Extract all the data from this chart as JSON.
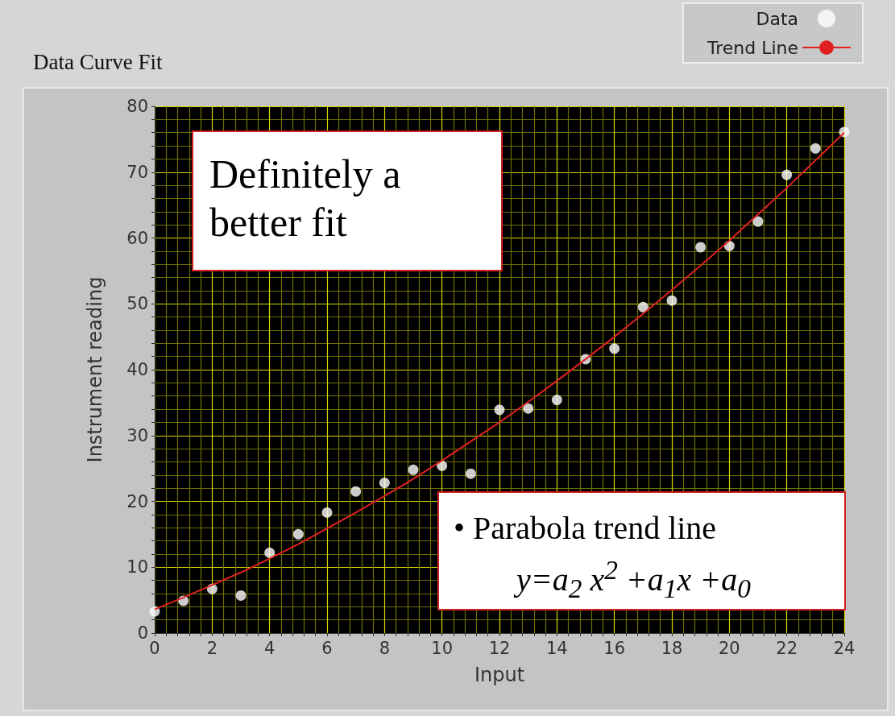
{
  "chart_data": {
    "type": "scatter",
    "title": "Data Curve Fit",
    "xlabel": "Input",
    "ylabel": "Instrument reading",
    "x": [
      0,
      1,
      2,
      3,
      4,
      5,
      6,
      7,
      8,
      9,
      10,
      11,
      12,
      13,
      14,
      15,
      16,
      17,
      18,
      19,
      20,
      21,
      22,
      23,
      24
    ],
    "series": [
      {
        "name": "Data",
        "marker": "circle",
        "color": "#ffffff",
        "values": [
          3.3,
          4.9,
          6.7,
          5.7,
          12.2,
          15.0,
          18.3,
          21.5,
          22.8,
          24.8,
          25.4,
          24.2,
          33.9,
          34.1,
          35.4,
          41.6,
          43.2,
          49.5,
          50.5,
          58.6,
          58.8,
          62.5,
          69.6,
          73.6,
          76.1
        ]
      },
      {
        "name": "Trend Line",
        "type": "line",
        "marker": "none",
        "line_style": "solid",
        "color": "#e02020",
        "values": [
          3.6,
          5.4,
          7.3,
          9.2,
          11.3,
          13.5,
          15.9,
          18.3,
          20.8,
          23.4,
          26.2,
          29.1,
          32.0,
          35.1,
          38.3,
          41.6,
          45.0,
          48.5,
          52.1,
          55.8,
          59.6,
          63.6,
          67.6,
          71.8,
          76.0
        ]
      }
    ],
    "xlim": [
      0,
      24
    ],
    "xticks": [
      0,
      {
        "value": 0.4,
        "label": null
      },
      {
        "value": 0.8,
        "label": null
      },
      {
        "value": 1.2,
        "label": null
      },
      {
        "value": 1.6,
        "label": null
      },
      2,
      {
        "value": 2.4,
        "label": null
      },
      {
        "value": 2.8,
        "label": null
      },
      {
        "value": 3.2,
        "label": null
      },
      {
        "value": 3.6,
        "label": null
      },
      4,
      {
        "value": 4.4,
        "label": null
      },
      {
        "value": 4.8,
        "label": null
      },
      {
        "value": 5.2,
        "label": null
      },
      {
        "value": 5.6,
        "label": null
      },
      6,
      {
        "value": 6.4,
        "label": null
      },
      {
        "value": 6.8,
        "label": null
      },
      {
        "value": 7.2,
        "label": null
      },
      {
        "value": 7.6,
        "label": null
      },
      8,
      {
        "value": 8.4,
        "label": null
      },
      {
        "value": 8.8,
        "label": null
      },
      {
        "value": 9.2,
        "label": null
      },
      {
        "value": 9.6,
        "label": null
      },
      10,
      {
        "value": 10.4,
        "label": null
      },
      {
        "value": 10.8,
        "label": null
      },
      {
        "value": 11.2,
        "label": null
      },
      {
        "value": 11.6,
        "label": null
      },
      12,
      {
        "value": 12.4,
        "label": null
      },
      {
        "value": 12.8,
        "label": null
      },
      {
        "value": 13.2,
        "label": null
      },
      {
        "value": 13.6,
        "label": null
      },
      14,
      {
        "value": 14.4,
        "label": null
      },
      {
        "value": 14.8,
        "label": null
      },
      {
        "value": 15.2,
        "label": null
      },
      {
        "value": 15.6,
        "label": null
      },
      16,
      {
        "value": 16.4,
        "label": null
      },
      {
        "value": 16.8,
        "label": null
      },
      {
        "value": 17.2,
        "label": null
      },
      {
        "value": 17.6,
        "label": null
      },
      18,
      {
        "value": 18.4,
        "label": null
      },
      {
        "value": 18.8,
        "label": null
      },
      {
        "value": 19.2,
        "label": null
      },
      {
        "value": 19.6,
        "label": null
      },
      20,
      {
        "value": 20.4,
        "label": null
      },
      {
        "value": 20.8,
        "label": null
      },
      {
        "value": 21.2,
        "label": null
      },
      {
        "value": 21.6,
        "label": null
      },
      22,
      {
        "value": 22.4,
        "label": null
      },
      {
        "value": 22.8,
        "label": null
      },
      {
        "value": 23.2,
        "label": null
      },
      {
        "value": 23.6,
        "label": null
      },
      24
    ],
    "ylim": [
      0,
      80
    ],
    "yticks": [
      0,
      {
        "value": 2,
        "label": null
      },
      {
        "value": 4,
        "label": null
      },
      {
        "value": 6,
        "label": null
      },
      {
        "value": 8,
        "label": null
      },
      10,
      {
        "value": 12,
        "label": null
      },
      {
        "value": 14,
        "label": null
      },
      {
        "value": 16,
        "label": null
      },
      {
        "value": 18,
        "label": null
      },
      20,
      {
        "value": 22,
        "label": null
      },
      {
        "value": 24,
        "label": null
      },
      {
        "value": 26,
        "label": null
      },
      {
        "value": 28,
        "label": null
      },
      30,
      {
        "value": 32,
        "label": null
      },
      {
        "value": 34,
        "label": null
      },
      {
        "value": 36,
        "label": null
      },
      {
        "value": 38,
        "label": null
      },
      40,
      {
        "value": 42,
        "label": null
      },
      {
        "value": 44,
        "label": null
      },
      {
        "value": 46,
        "label": null
      },
      {
        "value": 48,
        "label": null
      },
      50,
      {
        "value": 52,
        "label": null
      },
      {
        "value": 54,
        "label": null
      },
      {
        "value": 56,
        "label": null
      },
      {
        "value": 58,
        "label": null
      },
      60,
      {
        "value": 62,
        "label": null
      },
      {
        "value": 64,
        "label": null
      },
      {
        "value": 66,
        "label": null
      },
      {
        "value": 68,
        "label": null
      },
      70,
      {
        "value": 72,
        "label": null
      },
      {
        "value": 74,
        "label": null
      },
      {
        "value": 76,
        "label": null
      },
      {
        "value": 78,
        "label": null
      },
      80
    ],
    "grid": true,
    "legend": "top right",
    "annotations": [
      "Definitely a better fit",
      "• Parabola trend line",
      "y=a$_{2}$ x$^{2}$ +a$_{1}$x +a$_{0}$"
    ]
  }
}
